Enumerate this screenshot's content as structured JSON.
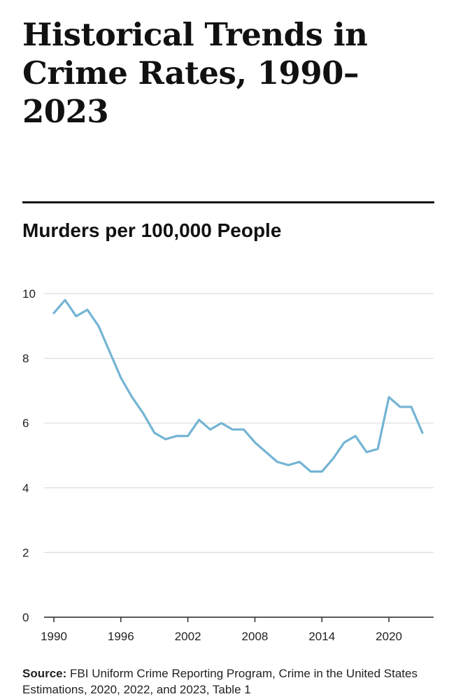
{
  "title": "Historical Trends in Crime Rates, 1990–2023",
  "chart_data": {
    "type": "line",
    "title": "Murders per 100,000 People",
    "xlabel": "",
    "ylabel": "",
    "x": [
      1990,
      1991,
      1992,
      1993,
      1994,
      1995,
      1996,
      1997,
      1998,
      1999,
      2000,
      2001,
      2002,
      2003,
      2004,
      2005,
      2006,
      2007,
      2008,
      2009,
      2010,
      2011,
      2012,
      2013,
      2014,
      2015,
      2016,
      2017,
      2018,
      2019,
      2020,
      2021,
      2022,
      2023
    ],
    "series": [
      {
        "values": [
          9.4,
          9.8,
          9.3,
          9.5,
          9.0,
          8.2,
          7.4,
          6.8,
          6.3,
          5.7,
          5.5,
          5.6,
          5.6,
          6.1,
          5.8,
          6.0,
          5.8,
          5.8,
          5.4,
          5.1,
          4.8,
          4.7,
          4.8,
          4.5,
          4.5,
          4.9,
          5.4,
          5.6,
          5.1,
          5.2,
          6.8,
          6.5,
          6.5,
          5.7
        ],
        "color": "#74b4d3"
      }
    ],
    "ylim": [
      0,
      10
    ],
    "yticks": [
      0,
      2,
      4,
      6,
      8,
      10
    ],
    "xticks": [
      1990,
      1996,
      2002,
      2008,
      2014,
      2020
    ],
    "grid": true,
    "legend": "none"
  },
  "source": {
    "label": "Source:",
    "text": "FBI Uniform Crime Reporting Program, Crime in the United States Estimations, 2020, 2022, and 2023, Table 1"
  }
}
